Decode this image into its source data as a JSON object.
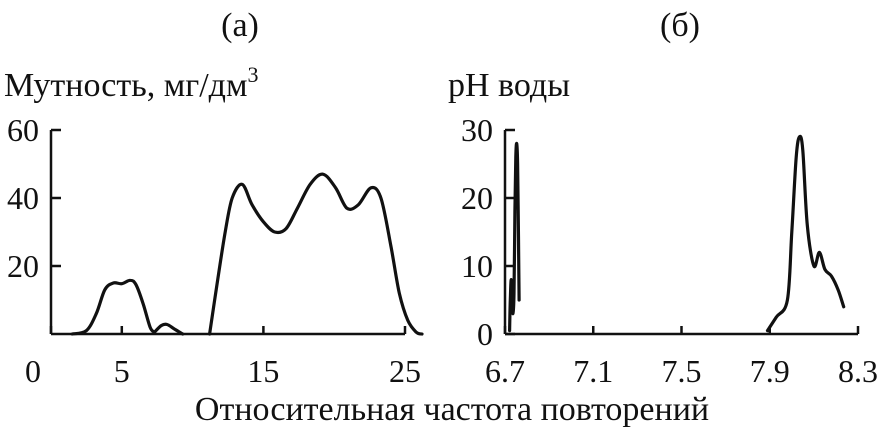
{
  "x_axis_title": "Относительная частота повторений",
  "chart_data": [
    {
      "type": "line",
      "panel_label": "(а)",
      "ylabel": "Мутность, мг/дм",
      "ylabel_superscript": "3",
      "xlabel": "",
      "xlim": [
        0,
        25
      ],
      "ylim": [
        0,
        60
      ],
      "xticks": [
        "0",
        "5",
        "15",
        "25"
      ],
      "xtick_values": [
        0,
        5,
        15,
        25
      ],
      "yticks": [
        "60",
        "40",
        "20"
      ],
      "ytick_values": [
        60,
        40,
        20
      ],
      "series": [
        {
          "points": [
            [
              1.5,
              0
            ],
            [
              2.5,
              1
            ],
            [
              3.2,
              6
            ],
            [
              3.8,
              13
            ],
            [
              4.4,
              15
            ],
            [
              5.0,
              14.8
            ],
            [
              5.6,
              15.8
            ],
            [
              6.0,
              14.5
            ],
            [
              6.5,
              9
            ],
            [
              7.0,
              2
            ],
            [
              7.3,
              0.5
            ]
          ]
        },
        {
          "points": [
            [
              7.3,
              0.5
            ],
            [
              7.8,
              2.5
            ],
            [
              8.2,
              2.8
            ],
            [
              8.7,
              1.5
            ],
            [
              9.3,
              0
            ]
          ]
        },
        {
          "points": [
            [
              11.2,
              0
            ],
            [
              11.7,
              14
            ],
            [
              12.3,
              30
            ],
            [
              12.8,
              40
            ],
            [
              13.5,
              44
            ],
            [
              14.2,
              38
            ],
            [
              15.0,
              33
            ],
            [
              15.8,
              30
            ],
            [
              16.6,
              31
            ],
            [
              17.4,
              37
            ],
            [
              18.3,
              44
            ],
            [
              19.2,
              47
            ],
            [
              20.1,
              43
            ],
            [
              20.9,
              37
            ],
            [
              21.7,
              38
            ],
            [
              22.6,
              43
            ],
            [
              23.3,
              40
            ],
            [
              24.0,
              26
            ],
            [
              24.6,
              12
            ],
            [
              25.2,
              4
            ],
            [
              25.8,
              0.5
            ],
            [
              26.2,
              0
            ]
          ]
        }
      ]
    },
    {
      "type": "line",
      "panel_label": "(б)",
      "ylabel": "pH воды",
      "xlabel": "",
      "xlim": [
        6.7,
        8.3
      ],
      "ylim": [
        0,
        30
      ],
      "xticks": [
        "6.7",
        "7.1",
        "7.5",
        "7.9",
        "8.3"
      ],
      "xtick_values": [
        6.7,
        7.1,
        7.5,
        7.9,
        8.3
      ],
      "yticks": [
        "30",
        "20",
        "10",
        "0"
      ],
      "ytick_values": [
        30,
        20,
        10,
        0
      ],
      "series": [
        {
          "points": [
            [
              6.721,
              0.5
            ],
            [
              6.724,
              5
            ],
            [
              6.728,
              8
            ],
            [
              6.732,
              5
            ],
            [
              6.736,
              3
            ],
            [
              6.741,
              6
            ],
            [
              6.745,
              18
            ],
            [
              6.749,
              26
            ],
            [
              6.753,
              28
            ],
            [
              6.757,
              25
            ],
            [
              6.761,
              14
            ],
            [
              6.764,
              5
            ]
          ]
        },
        {
          "points": [
            [
              7.89,
              0.5
            ],
            [
              7.93,
              2.5
            ],
            [
              7.98,
              5
            ],
            [
              8.0,
              15
            ],
            [
              8.02,
              26
            ],
            [
              8.035,
              29
            ],
            [
              8.05,
              27
            ],
            [
              8.07,
              16
            ],
            [
              8.1,
              10
            ],
            [
              8.125,
              12
            ],
            [
              8.15,
              9.5
            ],
            [
              8.18,
              8.5
            ],
            [
              8.21,
              6.5
            ],
            [
              8.235,
              4
            ]
          ]
        }
      ]
    }
  ]
}
